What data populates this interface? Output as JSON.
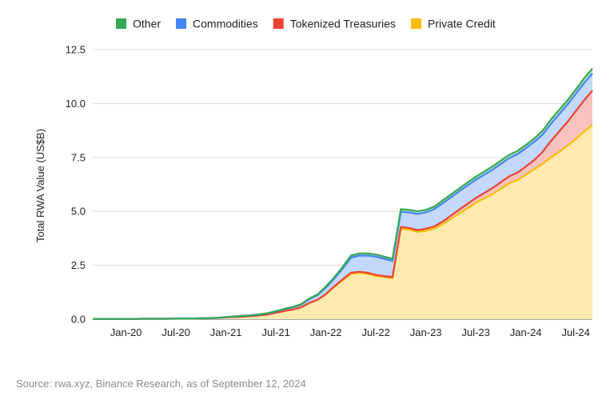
{
  "chart_data": {
    "type": "area",
    "stacked": true,
    "title": "",
    "xlabel": "",
    "ylabel": "Total RWA Value (US$B)",
    "ylim": [
      0,
      12.5
    ],
    "yticks": [
      "0.0",
      "2.5",
      "5.0",
      "7.5",
      "10.0",
      "12.5"
    ],
    "xticks": [
      "Jan-20",
      "Jul-20",
      "Jan-21",
      "Jul-21",
      "Jan-22",
      "Jul-22",
      "Jan-23",
      "Jul-23",
      "Jan-24",
      "Jul-24"
    ],
    "grid": true,
    "legend_position": "top",
    "x": [
      "2019-09",
      "2019-10",
      "2019-11",
      "2019-12",
      "2020-01",
      "2020-02",
      "2020-03",
      "2020-04",
      "2020-05",
      "2020-06",
      "2020-07",
      "2020-08",
      "2020-09",
      "2020-10",
      "2020-11",
      "2020-12",
      "2021-01",
      "2021-02",
      "2021-03",
      "2021-04",
      "2021-05",
      "2021-06",
      "2021-07",
      "2021-08",
      "2021-09",
      "2021-10",
      "2021-11",
      "2021-12",
      "2022-01",
      "2022-02",
      "2022-03",
      "2022-04",
      "2022-05",
      "2022-06",
      "2022-07",
      "2022-08",
      "2022-09",
      "2022-10",
      "2022-11",
      "2022-12",
      "2023-01",
      "2023-02",
      "2023-03",
      "2023-04",
      "2023-05",
      "2023-06",
      "2023-07",
      "2023-08",
      "2023-09",
      "2023-10",
      "2023-11",
      "2023-12",
      "2024-01",
      "2024-02",
      "2024-03",
      "2024-04",
      "2024-05",
      "2024-06",
      "2024-07",
      "2024-08",
      "2024-09"
    ],
    "series": [
      {
        "name": "Private Credit",
        "color": "#FBBC04",
        "values": [
          0.01,
          0.01,
          0.01,
          0.01,
          0.01,
          0.01,
          0.02,
          0.02,
          0.02,
          0.02,
          0.03,
          0.03,
          0.03,
          0.04,
          0.05,
          0.06,
          0.08,
          0.1,
          0.12,
          0.14,
          0.18,
          0.22,
          0.3,
          0.38,
          0.45,
          0.55,
          0.75,
          0.9,
          1.15,
          1.5,
          1.8,
          2.1,
          2.15,
          2.1,
          2.0,
          1.95,
          1.9,
          4.2,
          4.15,
          4.05,
          4.1,
          4.2,
          4.4,
          4.65,
          4.9,
          5.15,
          5.4,
          5.6,
          5.8,
          6.05,
          6.3,
          6.45,
          6.7,
          6.95,
          7.2,
          7.5,
          7.75,
          8.05,
          8.35,
          8.7,
          9.0
        ]
      },
      {
        "name": "Tokenized Treasuries",
        "color": "#EA4335",
        "values": [
          0,
          0,
          0,
          0,
          0,
          0,
          0,
          0,
          0,
          0,
          0,
          0,
          0,
          0,
          0,
          0,
          0,
          0,
          0,
          0,
          0,
          0,
          0,
          0,
          0,
          0,
          0,
          0,
          0.02,
          0.03,
          0.04,
          0.05,
          0.05,
          0.05,
          0.05,
          0.05,
          0.05,
          0.08,
          0.08,
          0.08,
          0.1,
          0.1,
          0.12,
          0.15,
          0.18,
          0.2,
          0.22,
          0.25,
          0.28,
          0.3,
          0.32,
          0.35,
          0.38,
          0.42,
          0.55,
          0.75,
          0.95,
          1.1,
          1.3,
          1.45,
          1.6
        ]
      },
      {
        "name": "Commodities",
        "color": "#4285F4",
        "values": [
          0,
          0,
          0,
          0,
          0,
          0,
          0,
          0,
          0,
          0,
          0,
          0,
          0,
          0,
          0,
          0,
          0.01,
          0.02,
          0.03,
          0.03,
          0.04,
          0.05,
          0.06,
          0.08,
          0.1,
          0.12,
          0.18,
          0.22,
          0.3,
          0.35,
          0.5,
          0.7,
          0.75,
          0.8,
          0.85,
          0.8,
          0.75,
          0.7,
          0.72,
          0.75,
          0.75,
          0.8,
          0.85,
          0.85,
          0.85,
          0.85,
          0.85,
          0.85,
          0.85,
          0.85,
          0.85,
          0.85,
          0.85,
          0.85,
          0.8,
          0.8,
          0.8,
          0.8,
          0.8,
          0.8,
          0.8
        ]
      },
      {
        "name": "Other",
        "color": "#34A853",
        "values": [
          0.005,
          0.005,
          0.005,
          0.005,
          0.005,
          0.005,
          0.005,
          0.005,
          0.005,
          0.005,
          0.005,
          0.005,
          0.005,
          0.005,
          0.005,
          0.005,
          0.01,
          0.01,
          0.01,
          0.01,
          0.01,
          0.01,
          0.02,
          0.02,
          0.02,
          0.02,
          0.03,
          0.03,
          0.05,
          0.06,
          0.08,
          0.1,
          0.1,
          0.1,
          0.1,
          0.1,
          0.1,
          0.12,
          0.12,
          0.12,
          0.12,
          0.12,
          0.13,
          0.13,
          0.13,
          0.14,
          0.14,
          0.14,
          0.15,
          0.15,
          0.15,
          0.15,
          0.15,
          0.15,
          0.18,
          0.2,
          0.2,
          0.2,
          0.2,
          0.22,
          0.22
        ]
      }
    ]
  },
  "legend": [
    {
      "label": "Other",
      "color": "#34A853"
    },
    {
      "label": "Commodities",
      "color": "#4285F4"
    },
    {
      "label": "Tokenized Treasuries",
      "color": "#EA4335"
    },
    {
      "label": "Private Credit",
      "color": "#FBBC04"
    }
  ],
  "source": "Source: rwa.xyz, Binance Research, as of September 12, 2024"
}
